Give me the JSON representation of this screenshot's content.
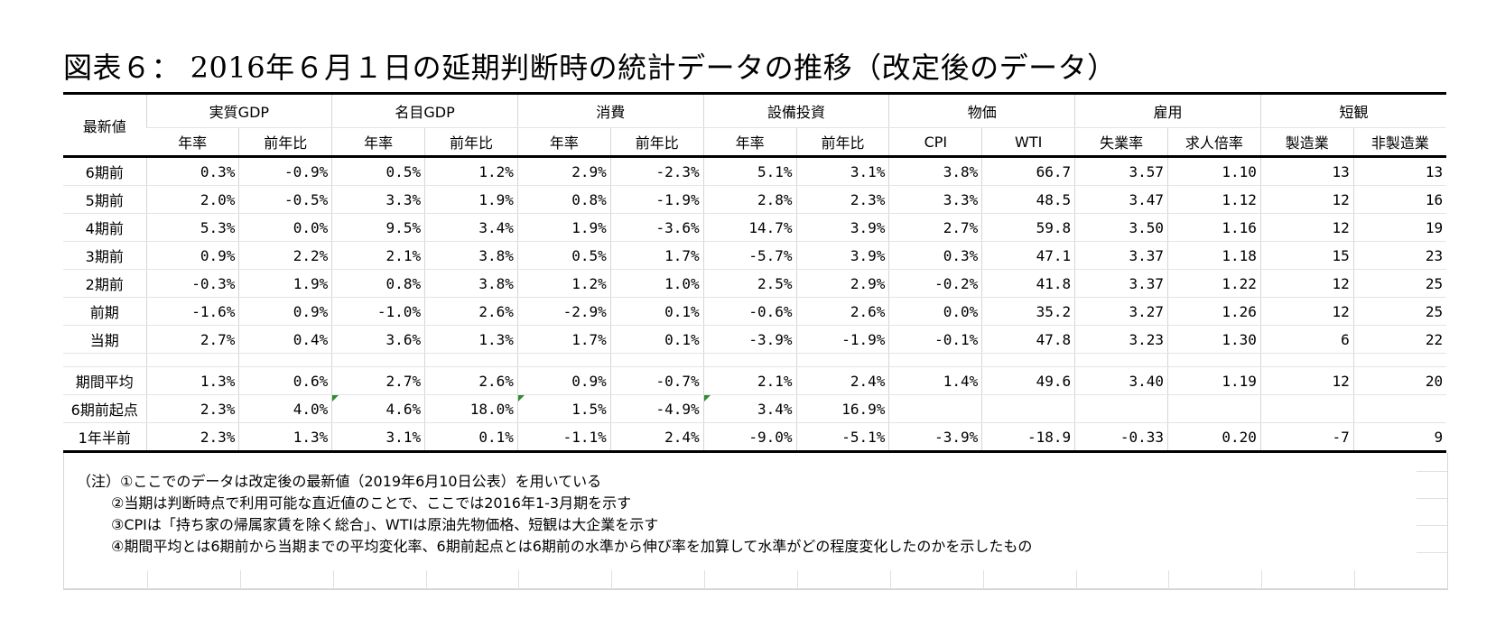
{
  "title": "図表６： 2016年６月１日の延期判断時の統計データの推移（改定後のデータ）",
  "corner_label": "最新値",
  "groups": [
    "実質GDP",
    "名目GDP",
    "消費",
    "設備投資",
    "物価",
    "雇用",
    "短観"
  ],
  "subheaders": [
    "年率",
    "前年比",
    "年率",
    "前年比",
    "年率",
    "前年比",
    "年率",
    "前年比",
    "CPI",
    "WTI",
    "失業率",
    "求人倍率",
    "製造業",
    "非製造業"
  ],
  "rows": [
    {
      "label": "6期前",
      "values": [
        "0.3%",
        "-0.9%",
        "0.5%",
        "1.2%",
        "2.9%",
        "-2.3%",
        "5.1%",
        "3.1%",
        "3.8%",
        "66.7",
        "3.57",
        "1.10",
        "13",
        "13"
      ]
    },
    {
      "label": "5期前",
      "values": [
        "2.0%",
        "-0.5%",
        "3.3%",
        "1.9%",
        "0.8%",
        "-1.9%",
        "2.8%",
        "2.3%",
        "3.3%",
        "48.5",
        "3.47",
        "1.12",
        "12",
        "16"
      ]
    },
    {
      "label": "4期前",
      "values": [
        "5.3%",
        "0.0%",
        "9.5%",
        "3.4%",
        "1.9%",
        "-3.6%",
        "14.7%",
        "3.9%",
        "2.7%",
        "59.8",
        "3.50",
        "1.16",
        "12",
        "19"
      ]
    },
    {
      "label": "3期前",
      "values": [
        "0.9%",
        "2.2%",
        "2.1%",
        "3.8%",
        "0.5%",
        "1.7%",
        "-5.7%",
        "3.9%",
        "0.3%",
        "47.1",
        "3.37",
        "1.18",
        "15",
        "23"
      ]
    },
    {
      "label": "2期前",
      "values": [
        "-0.3%",
        "1.9%",
        "0.8%",
        "3.8%",
        "1.2%",
        "1.0%",
        "2.5%",
        "2.9%",
        "-0.2%",
        "41.8",
        "3.37",
        "1.22",
        "12",
        "25"
      ]
    },
    {
      "label": "前期",
      "values": [
        "-1.6%",
        "0.9%",
        "-1.0%",
        "2.6%",
        "-2.9%",
        "0.1%",
        "-0.6%",
        "2.6%",
        "0.0%",
        "35.2",
        "3.27",
        "1.26",
        "12",
        "25"
      ]
    },
    {
      "label": "当期",
      "values": [
        "2.7%",
        "0.4%",
        "3.6%",
        "1.3%",
        "1.7%",
        "0.1%",
        "-3.9%",
        "-1.9%",
        "-0.1%",
        "47.8",
        "3.23",
        "1.30",
        "6",
        "22"
      ]
    }
  ],
  "summary_rows": [
    {
      "label": "期間平均",
      "values": [
        "1.3%",
        "0.6%",
        "2.7%",
        "2.6%",
        "0.9%",
        "-0.7%",
        "2.1%",
        "2.4%",
        "1.4%",
        "49.6",
        "3.40",
        "1.19",
        "12",
        "20"
      ]
    },
    {
      "label": "6期前起点",
      "values": [
        "2.3%",
        "4.0%",
        "4.6%",
        "18.0%",
        "1.5%",
        "-4.9%",
        "3.4%",
        "16.9%",
        "",
        "",
        "",
        "",
        "",
        ""
      ]
    },
    {
      "label": "1年半前",
      "values": [
        "2.3%",
        "1.3%",
        "3.1%",
        "0.1%",
        "-1.1%",
        "2.4%",
        "-9.0%",
        "-5.1%",
        "-3.9%",
        "-18.9",
        "-0.33",
        "0.20",
        "-7",
        "9"
      ]
    }
  ],
  "notes": [
    "（注）①ここでのデータは改定後の最新値（2019年6月10日公表）を用いている",
    "②当期は判断時点で利用可能な直近値のことで、ここでは2016年1-3月期を示す",
    "③CPIは「持ち家の帰属家賃を除く総合」、WTIは原油先物価格、短観は大企業を示す",
    "④期間平均とは6期前から当期までの平均変化率、6期前起点とは6期前の水準から伸び率を加算して水準がどの程度変化したのかを示したもの"
  ],
  "colors": {
    "rule": "#000000",
    "gridline": "#d6d6d6",
    "flag": "#2e8b2e"
  }
}
